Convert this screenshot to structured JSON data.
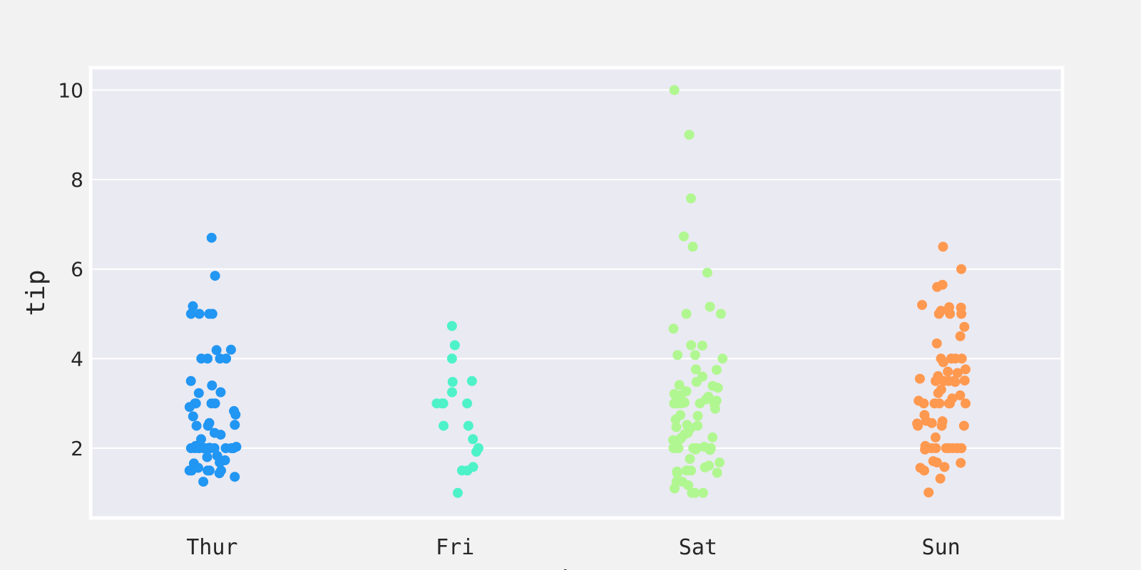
{
  "chart_data": {
    "type": "scatter",
    "subtype": "strip",
    "title": "",
    "xlabel": "day",
    "ylabel": "tip",
    "categories": [
      "Thur",
      "Fri",
      "Sat",
      "Sun"
    ],
    "ylim": [
      0.44,
      10.5
    ],
    "yticks": [
      2,
      4,
      6,
      8,
      10
    ],
    "grid": true,
    "background_color": "#eaeaf2",
    "figure_color": "#f2f2f2",
    "series": [
      {
        "name": "Thur",
        "color": "#2196f3",
        "values": [
          6.7,
          5.85,
          5.17,
          5.0,
          5.0,
          5.0,
          5.0,
          4.2,
          4.19,
          4.0,
          4.0,
          4.0,
          4.0,
          3.5,
          3.4,
          3.23,
          3.25,
          3.0,
          3.0,
          3.0,
          3.0,
          2.92,
          2.83,
          2.75,
          2.71,
          2.56,
          2.52,
          2.5,
          2.5,
          2.34,
          2.3,
          2.2,
          2.05,
          2.03,
          2.01,
          2.0,
          2.0,
          2.0,
          2.0,
          2.0,
          2.0,
          2.0,
          2.0,
          2.0,
          2.0,
          2.0,
          2.0,
          2.0,
          1.83,
          1.8,
          1.73,
          1.68,
          1.66,
          1.56,
          1.5,
          1.5,
          1.5,
          1.5,
          1.5,
          1.44,
          1.36,
          1.25
        ]
      },
      {
        "name": "Fri",
        "color": "#4ef2c9",
        "values": [
          4.73,
          4.3,
          4.0,
          3.5,
          3.48,
          3.25,
          3.0,
          3.0,
          3.0,
          3.0,
          2.5,
          2.5,
          2.2,
          2.0,
          1.92,
          1.58,
          1.5,
          1.5,
          1.0
        ]
      },
      {
        "name": "Sat",
        "color": "#b1f791",
        "values": [
          10.0,
          9.0,
          7.58,
          6.73,
          6.5,
          5.92,
          5.16,
          5.0,
          5.0,
          4.67,
          4.3,
          4.29,
          4.08,
          4.08,
          4.0,
          3.76,
          3.75,
          3.6,
          3.48,
          3.41,
          3.39,
          3.35,
          3.27,
          3.21,
          3.18,
          3.15,
          3.12,
          3.09,
          3.06,
          3.02,
          3.0,
          3.0,
          3.0,
          3.0,
          3.0,
          3.0,
          2.98,
          2.88,
          2.74,
          2.72,
          2.64,
          2.52,
          2.5,
          2.47,
          2.45,
          2.31,
          2.34,
          2.24,
          2.2,
          2.23,
          2.18,
          2.03,
          2.0,
          2.0,
          2.0,
          2.0,
          2.0,
          2.0,
          2.0,
          1.97,
          1.96,
          1.76,
          1.68,
          1.61,
          1.57,
          1.5,
          1.5,
          1.48,
          1.45,
          1.44,
          1.25,
          1.25,
          1.17,
          1.1,
          1.0,
          1.0,
          1.0
        ]
      },
      {
        "name": "Sun",
        "color": "#ff9950",
        "values": [
          6.5,
          6.0,
          5.65,
          5.6,
          5.2,
          5.14,
          5.15,
          5.07,
          5.0,
          5.0,
          5.0,
          4.71,
          4.5,
          4.34,
          4.0,
          4.0,
          4.0,
          4.0,
          3.92,
          3.76,
          3.71,
          3.68,
          3.61,
          3.55,
          3.51,
          3.5,
          3.5,
          3.5,
          3.5,
          3.48,
          3.31,
          3.23,
          3.18,
          3.11,
          3.06,
          3.0,
          3.0,
          3.0,
          3.0,
          3.0,
          3.0,
          2.74,
          2.61,
          2.6,
          2.56,
          2.55,
          2.5,
          2.5,
          2.5,
          2.24,
          2.05,
          2.0,
          2.0,
          2.0,
          2.0,
          2.0,
          2.0,
          2.0,
          2.0,
          1.97,
          1.71,
          1.68,
          1.67,
          1.58,
          1.56,
          1.5,
          1.32,
          1.01
        ]
      }
    ]
  }
}
